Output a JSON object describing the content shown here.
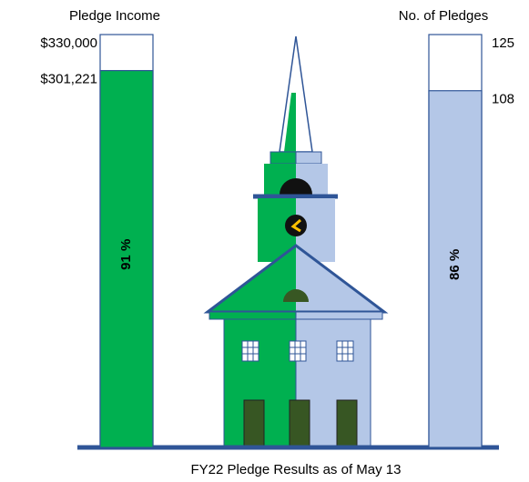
{
  "title": "FY22 Pledge Results as of May 13",
  "income": {
    "label": "Pledge Income",
    "goal": 330000,
    "goal_label": "$330,000",
    "value": 301221,
    "value_label": "$301,221",
    "percent_label": "91 %",
    "color": "#00b050"
  },
  "pledges": {
    "label": "No. of Pledges",
    "goal": 125,
    "value": 108,
    "percent_label": "86 %",
    "color": "#b4c7e7"
  }
}
